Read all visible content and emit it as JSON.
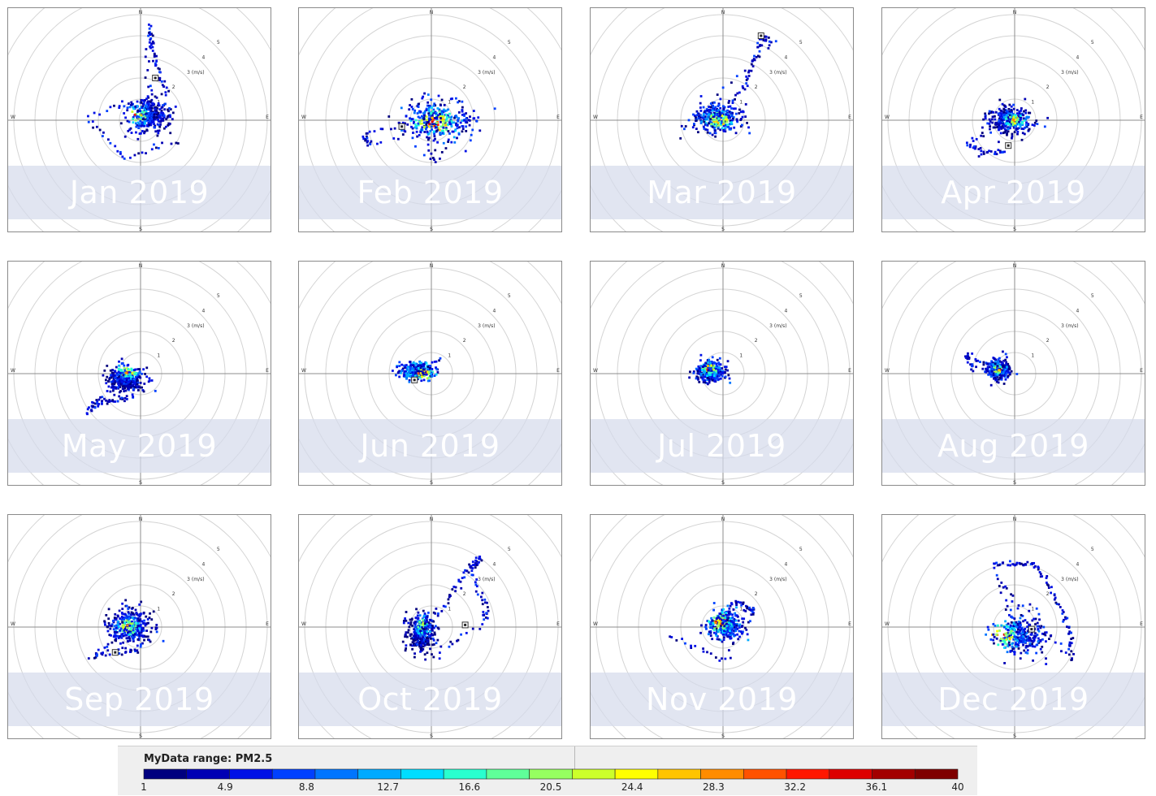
{
  "chart_data": {
    "type": "scatter",
    "title": "",
    "directions": [
      "N",
      "E",
      "S",
      "W"
    ],
    "ring_labels": [
      "1",
      "2",
      "3 (m/s)",
      "4",
      "5"
    ],
    "legend": {
      "title": "MyData range: PM2.5",
      "ticks": [
        "1",
        "4.9",
        "8.8",
        "12.7",
        "16.6",
        "20.5",
        "24.4",
        "28.3",
        "32.2",
        "36.1",
        "40"
      ],
      "min": 1,
      "max": 40,
      "colors": [
        "#00007f",
        "#0000b4",
        "#0010e6",
        "#0040ff",
        "#0075ff",
        "#00aaff",
        "#00ddff",
        "#29ffcf",
        "#5fff99",
        "#96ff60",
        "#ccff2a",
        "#ffff00",
        "#ffc400",
        "#ff8c00",
        "#ff5200",
        "#ff1700",
        "#dd0000",
        "#a30000",
        "#7f0000"
      ]
    },
    "panels": [
      {
        "label": "Jan 2019",
        "center_x": 0.4,
        "center_y": 0.2,
        "spread_x": 0.9,
        "spread_y": 0.7,
        "tail": [
          [
            0.4,
            4.5
          ],
          [
            0.5,
            3.5
          ],
          [
            0.8,
            2.5
          ],
          [
            1.3,
            1.2
          ],
          [
            -2.5,
            0.2
          ],
          [
            -0.8,
            -1.8
          ],
          [
            1.8,
            -1.0
          ]
        ],
        "hot_x": -0.2,
        "hot_y": 0.2,
        "mean_pm": 12,
        "marker_x": 0.7,
        "marker_y": 2.0
      },
      {
        "label": "Feb 2019",
        "center_x": 0.3,
        "center_y": 0.0,
        "spread_x": 1.4,
        "spread_y": 0.8,
        "tail": [
          [
            -3.2,
            -0.6
          ],
          [
            -3.0,
            -1.2
          ],
          [
            2.0,
            0.0
          ],
          [
            0.0,
            -2.0
          ],
          [
            -0.5,
            1.2
          ]
        ],
        "hot_x": 0.2,
        "hot_y": -0.1,
        "mean_pm": 16,
        "marker_x": -1.4,
        "marker_y": -0.3
      },
      {
        "label": "Mar 2019",
        "center_x": -0.3,
        "center_y": 0.1,
        "spread_x": 1.0,
        "spread_y": 0.6,
        "tail": [
          [
            1.0,
            1.5
          ],
          [
            1.5,
            2.8
          ],
          [
            1.8,
            3.9
          ],
          [
            2.3,
            3.7
          ],
          [
            -2.1,
            -0.8
          ]
        ],
        "hot_x": -0.2,
        "hot_y": 0.0,
        "mean_pm": 14,
        "marker_x": 1.8,
        "marker_y": 4.0
      },
      {
        "label": "Apr 2019",
        "center_x": -0.2,
        "center_y": 0.0,
        "spread_x": 0.9,
        "spread_y": 0.55,
        "tail": [
          [
            -2.2,
            -1.1
          ],
          [
            -1.5,
            -1.6
          ],
          [
            -0.5,
            -1.4
          ]
        ],
        "hot_x": 0.0,
        "hot_y": 0.0,
        "mean_pm": 11,
        "marker_x": -0.3,
        "marker_y": -1.2
      },
      {
        "label": "May 2019",
        "center_x": -0.7,
        "center_y": -0.3,
        "spread_x": 0.8,
        "spread_y": 0.55,
        "tail": [
          [
            -2.5,
            -1.8
          ],
          [
            -2.0,
            -1.4
          ],
          [
            -1.3,
            -1.3
          ],
          [
            -0.4,
            -1.1
          ]
        ],
        "hot_x": -0.6,
        "hot_y": 0.1,
        "mean_pm": 12,
        "marker_x": -9,
        "marker_y": -9
      },
      {
        "label": "Jun 2019",
        "center_x": -0.7,
        "center_y": 0.1,
        "spread_x": 0.7,
        "spread_y": 0.35,
        "tail": [
          [
            0.4,
            0.6
          ]
        ],
        "hot_x": -0.4,
        "hot_y": 0.0,
        "mean_pm": 20,
        "marker_x": -0.8,
        "marker_y": -0.3
      },
      {
        "label": "Jul 2019",
        "center_x": -0.6,
        "center_y": 0.1,
        "spread_x": 0.6,
        "spread_y": 0.45,
        "tail": [],
        "hot_x": -0.6,
        "hot_y": 0.2,
        "mean_pm": 15,
        "marker_x": -9,
        "marker_y": -9
      },
      {
        "label": "Aug 2019",
        "center_x": -0.8,
        "center_y": 0.2,
        "spread_x": 0.5,
        "spread_y": 0.4,
        "tail": [
          [
            -2.3,
            0.9
          ],
          [
            -2.0,
            0.2
          ]
        ],
        "hot_x": -0.8,
        "hot_y": 0.2,
        "mean_pm": 14,
        "marker_x": -9,
        "marker_y": -9
      },
      {
        "label": "Sep 2019",
        "center_x": -0.5,
        "center_y": 0.0,
        "spread_x": 0.9,
        "spread_y": 0.7,
        "tail": [
          [
            -2.3,
            -1.4
          ],
          [
            -1.2,
            -1.2
          ],
          [
            0.0,
            -1.1
          ],
          [
            -0.2,
            1.2
          ]
        ],
        "hot_x": -0.6,
        "hot_y": 0.0,
        "mean_pm": 11,
        "marker_x": -1.2,
        "marker_y": -1.2
      },
      {
        "label": "Oct 2019",
        "center_x": -0.5,
        "center_y": -0.3,
        "spread_x": 0.6,
        "spread_y": 0.8,
        "tail": [
          [
            0.8,
            1.3
          ],
          [
            1.6,
            2.5
          ],
          [
            2.4,
            3.3
          ],
          [
            1.8,
            2.8
          ],
          [
            2.5,
            1.2
          ],
          [
            2.6,
            0.3
          ],
          [
            -0.2,
            -1.6
          ]
        ],
        "hot_x": -0.4,
        "hot_y": 0.0,
        "mean_pm": 9,
        "marker_x": 1.6,
        "marker_y": 0.1
      },
      {
        "label": "Nov 2019",
        "center_x": 0.1,
        "center_y": 0.1,
        "spread_x": 0.7,
        "spread_y": 0.6,
        "tail": [
          [
            0.5,
            1.2
          ],
          [
            1.2,
            0.9
          ],
          [
            1.5,
            0.7
          ],
          [
            0.0,
            -1.6
          ],
          [
            -2.5,
            -0.4
          ]
        ],
        "hot_x": -0.1,
        "hot_y": 0.2,
        "mean_pm": 18,
        "marker_x": -9,
        "marker_y": -9
      },
      {
        "label": "Dec 2019",
        "center_x": 0.2,
        "center_y": -0.4,
        "spread_x": 1.1,
        "spread_y": 0.7,
        "tail": [
          [
            -1.0,
            3.0
          ],
          [
            0.0,
            3.0
          ],
          [
            0.9,
            3.0
          ],
          [
            1.6,
            2.0
          ],
          [
            2.3,
            0.6
          ],
          [
            2.7,
            -0.5
          ],
          [
            2.7,
            -1.5
          ],
          [
            -0.5,
            2.0
          ],
          [
            1.6,
            -1.8
          ]
        ],
        "hot_x": -0.6,
        "hot_y": -0.4,
        "mean_pm": 16,
        "marker_x": 0.8,
        "marker_y": -0.1
      }
    ]
  }
}
